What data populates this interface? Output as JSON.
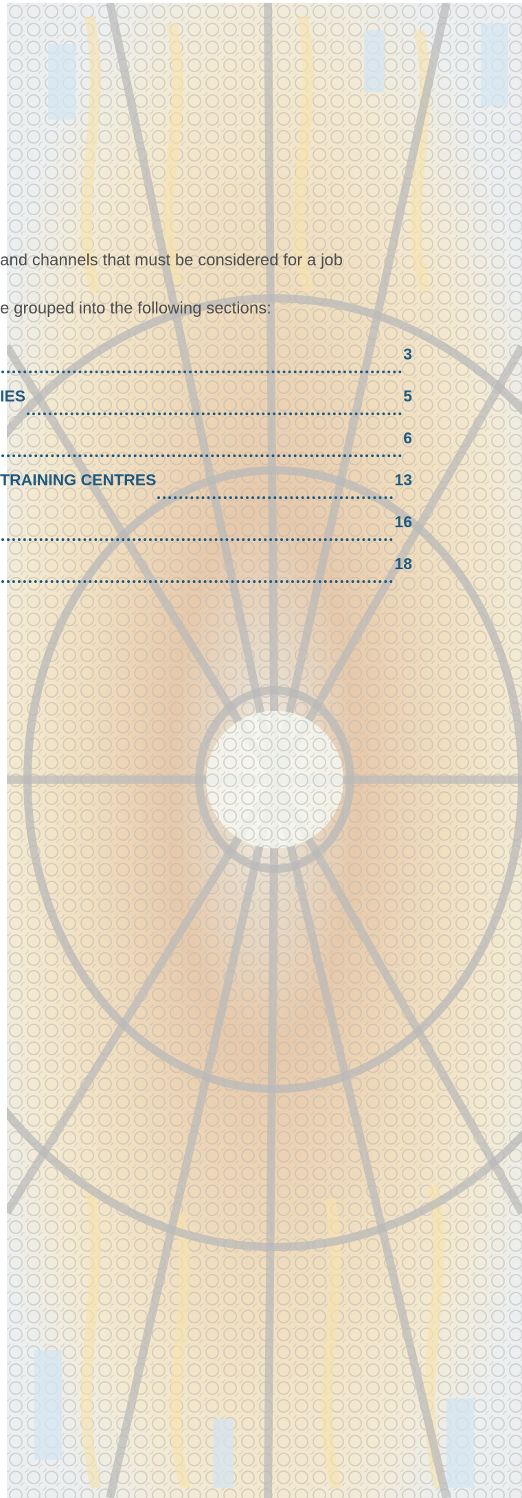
{
  "intro": {
    "line_1": "and channels that must be considered for a job",
    "line_2": "e grouped into the following sections:"
  },
  "toc": [
    {
      "title": "",
      "page": "3"
    },
    {
      "title": "IES",
      "page": "5"
    },
    {
      "title": "",
      "page": "6"
    },
    {
      "title": "TRAINING CENTRES",
      "page": "13"
    },
    {
      "title": "",
      "page": "16"
    },
    {
      "title": "",
      "page": "18"
    }
  ],
  "colors": {
    "heading_link": "#1f5a80",
    "body_text": "#4e4e4e",
    "glass_amber": "#e8c98a",
    "glass_lead": "#8f8f8f",
    "glass_blue": "#b9d6ea"
  },
  "background": {
    "image": "stained-glass-dome"
  }
}
